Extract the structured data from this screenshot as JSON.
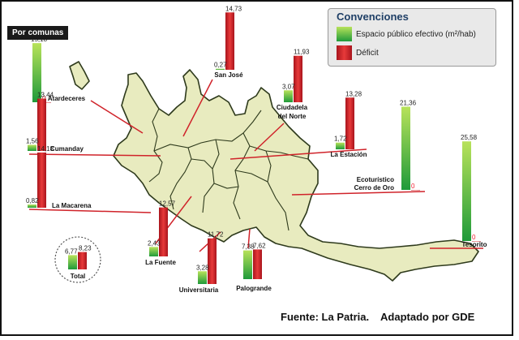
{
  "title": "Por comunas",
  "source": "Fuente: La Patria.    Adaptado por GDE",
  "legend": {
    "title": "Convenciones",
    "items": [
      {
        "label": "Espacio público efectivo (m²/hab)",
        "color": "#3aa83a"
      },
      {
        "label": "Déficit",
        "color": "#cc1f26"
      }
    ]
  },
  "colors": {
    "green": "#2ea33a",
    "red": "#cc1f26",
    "map_fill": "#e8ebbf",
    "map_border": "#2e3a1c",
    "leader": "#d0232a"
  },
  "communes": [
    {
      "name": "Atardeceres",
      "espacio": "15,18",
      "deficit": "0"
    },
    {
      "name": "San José",
      "espacio": "0,27",
      "deficit": "14,73"
    },
    {
      "name": "Ciudadela del Norte",
      "espacio": "3,07",
      "deficit": "11,93"
    },
    {
      "name": "Cumanday",
      "espacio": "1,56",
      "deficit": "13,44"
    },
    {
      "name": "La Estación",
      "espacio": "1,72",
      "deficit": "13,28"
    },
    {
      "name": "La Macarena",
      "espacio": "0,82",
      "deficit": "14,18"
    },
    {
      "name": "Ecoturístico Cerro de Oro",
      "espacio": "21,36",
      "deficit": "0"
    },
    {
      "name": "Tesorito",
      "espacio": "25,58",
      "deficit": "0"
    },
    {
      "name": "La Fuente",
      "espacio": "2,43",
      "deficit": "12,57"
    },
    {
      "name": "Universitaria",
      "espacio": "3,28",
      "deficit": "11,72"
    },
    {
      "name": "Palogrande",
      "espacio": "7,38",
      "deficit": "7,62"
    }
  ],
  "total": {
    "name": "Total",
    "espacio": "6,77",
    "deficit": "8,23"
  }
}
